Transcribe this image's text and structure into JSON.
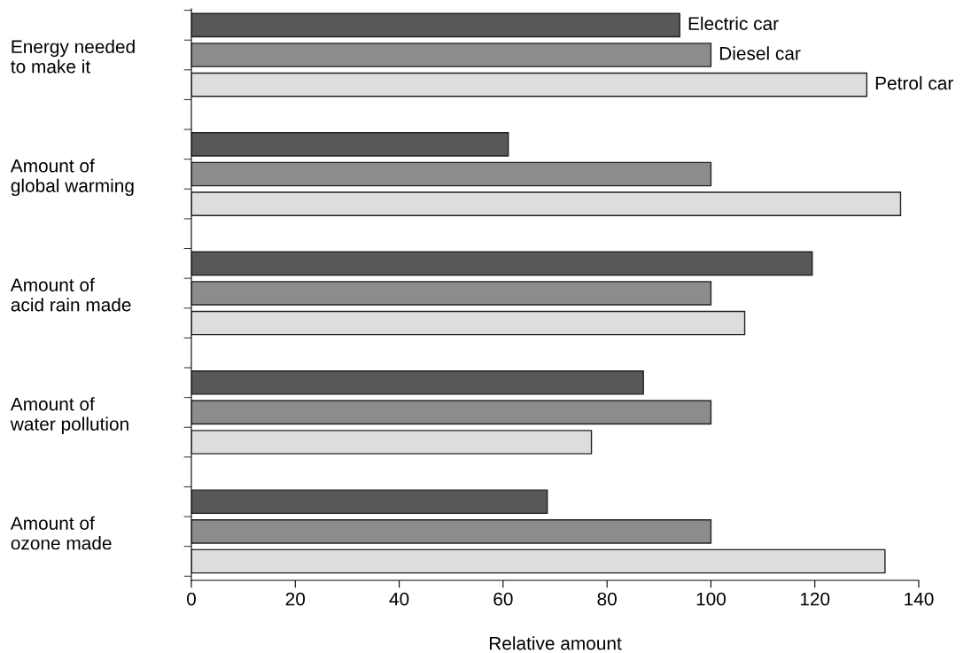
{
  "chart_data": {
    "type": "bar",
    "orientation": "horizontal",
    "xlabel": "Relative amount",
    "categories": [
      "Energy needed\nto make it",
      "Amount of\nglobal warming",
      "Amount of\nacid rain made",
      "Amount of\nwater pollution",
      "Amount of\nozone made"
    ],
    "series": [
      {
        "name": "Electric car",
        "color": "#58585a",
        "values": [
          94,
          61,
          119.5,
          87,
          68.5
        ]
      },
      {
        "name": "Diesel car",
        "color": "#8c8c8e",
        "values": [
          100,
          100,
          100,
          100,
          100
        ]
      },
      {
        "name": "Petrol car",
        "color": "#dcdddf",
        "values": [
          130,
          136.5,
          106.5,
          77,
          133.5
        ]
      }
    ],
    "xlim": [
      0,
      140
    ],
    "xticks": [
      0,
      20,
      40,
      60,
      80,
      100,
      120,
      140
    ],
    "grid": false,
    "legend": false
  }
}
